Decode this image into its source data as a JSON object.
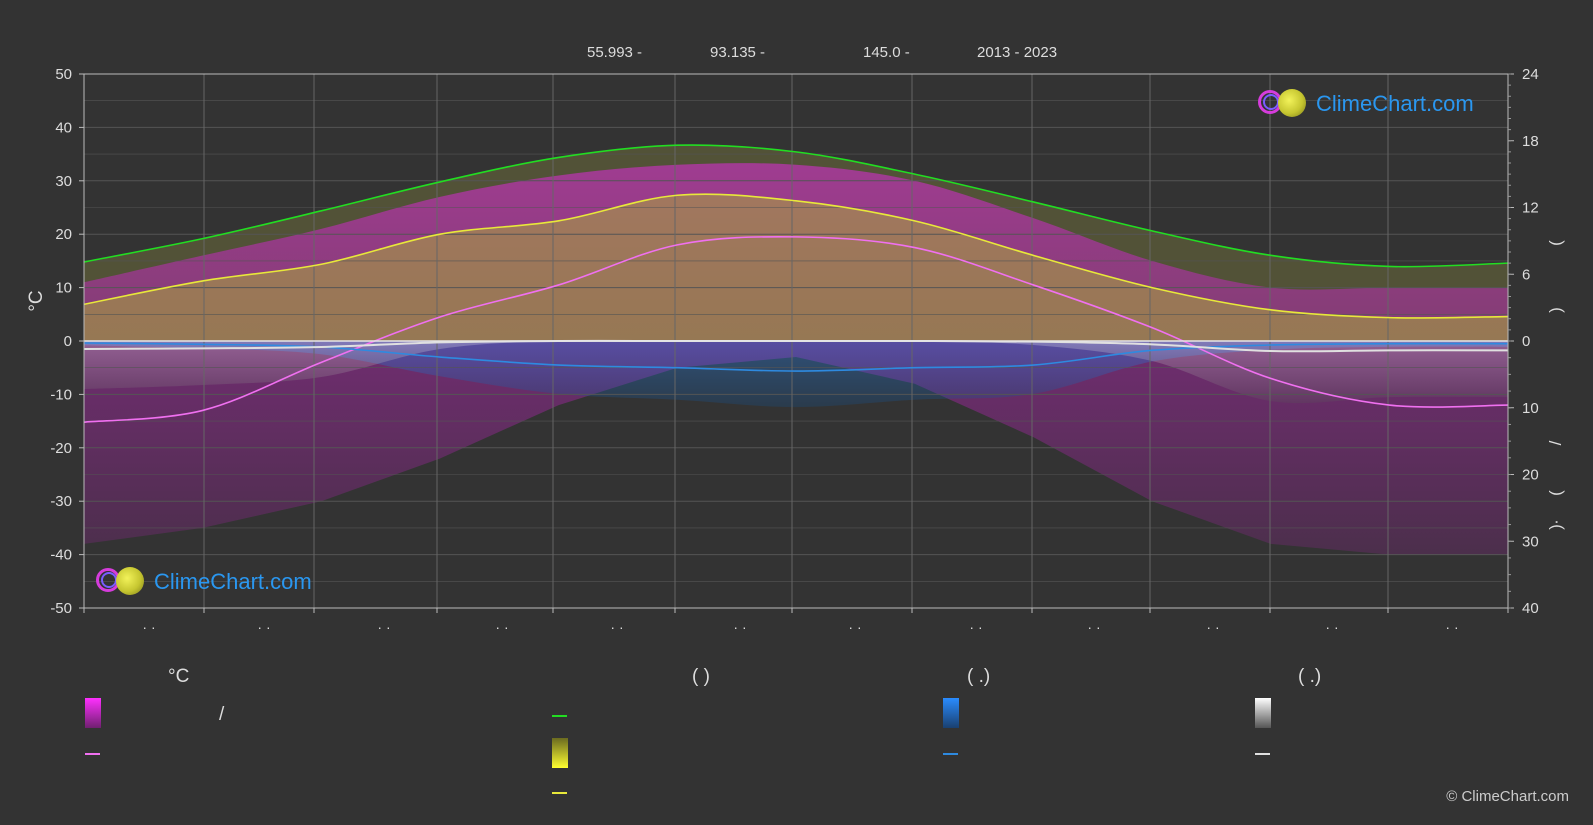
{
  "header": {
    "lat": "55.993 -",
    "lon": "93.135 -",
    "elev": "145.0 -",
    "years": "2013 - 2023"
  },
  "axes": {
    "left_unit": "°C",
    "left_ticks": [
      "50",
      "40",
      "30",
      "20",
      "10",
      "0",
      "-10",
      "-20",
      "-30",
      "-40",
      "-50"
    ],
    "right_top_ticks": [
      "24",
      "18",
      "12",
      "6",
      "0"
    ],
    "right_bottom_ticks": [
      "10",
      "20",
      "30",
      "40"
    ],
    "right_label_parts": [
      "(",
      ")",
      "/",
      "(",
      "·",
      ")"
    ],
    "month_labels": [
      "· ·",
      "· ·",
      "· ·",
      "· ·",
      "· ·",
      "· ·",
      "· ·",
      "· ·",
      "· ·",
      "· ·",
      "· ·",
      "· ·"
    ]
  },
  "legend": {
    "col1_title": "°C",
    "col1_slash": "/",
    "col2_title": "(          )",
    "col3_title": "(    .)",
    "col4_title": "(    .)"
  },
  "logo_text": "ClimeChart.com",
  "copyright": "© ClimeChart.com",
  "colors": {
    "background": "#333333",
    "temp_range": "#e040e0",
    "mean_temp": "#f070f0",
    "daylight": "#22dd22",
    "sunshine": "#e8e83a",
    "precip": "#2e8ae0",
    "snow": "#e0e0e0",
    "logo_text": "#2a97f0"
  },
  "chart_data": {
    "type": "line",
    "x": [
      0,
      1,
      2,
      3,
      4,
      5,
      6,
      7,
      8,
      9,
      10,
      11,
      12
    ],
    "left_axis": {
      "unit": "°C",
      "ylim": [
        -50,
        50
      ]
    },
    "right_axis_top": {
      "ylim": [
        0,
        24
      ]
    },
    "right_axis_bottom": {
      "ylim": [
        0,
        40
      ],
      "inverted": true
    },
    "series": [
      {
        "key": "mean_temp",
        "values": [
          -15.2,
          -13.0,
          -4.0,
          4.5,
          10.5,
          18.0,
          19.5,
          17.5,
          10.5,
          2.5,
          -7.0,
          -12.0,
          -12.0
        ]
      },
      {
        "key": "temp_max_envelope",
        "values": [
          11,
          16,
          21,
          27,
          31,
          33,
          33,
          30,
          23,
          15,
          10,
          10,
          10
        ]
      },
      {
        "key": "temp_min_envelope",
        "values": [
          -38,
          -35,
          -30,
          -22,
          -12,
          -5,
          -3,
          -8,
          -18,
          -30,
          -38,
          -40,
          -40
        ]
      },
      {
        "key": "daylight",
        "values": [
          7.1,
          9.2,
          11.7,
          14.3,
          16.5,
          17.6,
          17.0,
          15.0,
          12.5,
          9.9,
          7.7,
          6.7,
          7.0
        ]
      },
      {
        "key": "sunshine",
        "values": [
          3.3,
          5.4,
          6.9,
          9.6,
          10.8,
          13.1,
          12.6,
          10.8,
          7.7,
          4.8,
          2.8,
          2.1,
          2.2
        ]
      },
      {
        "key": "precip_mean",
        "values": [
          0.3,
          0.5,
          0.9,
          2.4,
          3.6,
          4.0,
          4.5,
          4.0,
          3.6,
          1.4,
          0.6,
          0.4,
          0.4
        ]
      },
      {
        "key": "snow_mean",
        "values": [
          1.2,
          1.1,
          0.9,
          0.2,
          0,
          0,
          0,
          0,
          0.1,
          0.5,
          1.5,
          1.4,
          1.4
        ]
      }
    ]
  }
}
